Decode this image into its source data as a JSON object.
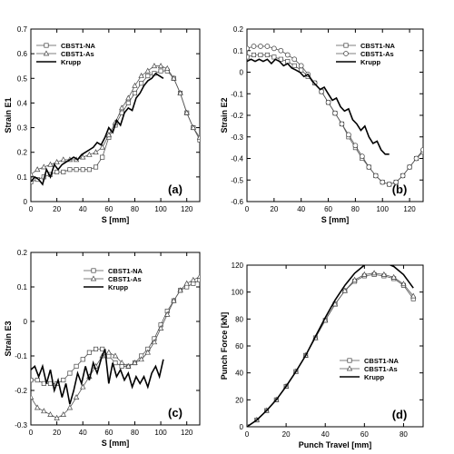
{
  "chart_data": [
    {
      "type": "line",
      "panel_label": "(a)",
      "xlabel": "S [mm]",
      "ylabel": "Strain E1",
      "xlim": [
        0,
        130
      ],
      "ylim": [
        0,
        0.7
      ],
      "xticks": [
        0,
        20,
        40,
        60,
        80,
        100,
        120
      ],
      "yticks": [
        0,
        0.1,
        0.2,
        0.3,
        0.4,
        0.5,
        0.6,
        0.7
      ],
      "legend_position": "top-left",
      "series": [
        {
          "name": "CBST1-NA",
          "marker": "square",
          "x": [
            0,
            5,
            10,
            15,
            20,
            25,
            30,
            35,
            40,
            45,
            50,
            55,
            60,
            65,
            70,
            75,
            80,
            85,
            90,
            95,
            100,
            105,
            110,
            115,
            120,
            125,
            130
          ],
          "y": [
            0.08,
            0.09,
            0.1,
            0.11,
            0.12,
            0.12,
            0.13,
            0.13,
            0.13,
            0.13,
            0.14,
            0.18,
            0.26,
            0.31,
            0.36,
            0.4,
            0.44,
            0.48,
            0.51,
            0.52,
            0.53,
            0.53,
            0.5,
            0.44,
            0.36,
            0.3,
            0.25
          ]
        },
        {
          "name": "CBST1-As",
          "marker": "triangle",
          "x": [
            0,
            5,
            10,
            15,
            20,
            25,
            30,
            35,
            40,
            45,
            50,
            55,
            60,
            65,
            70,
            75,
            80,
            85,
            90,
            95,
            100,
            105,
            110,
            115,
            120,
            125,
            130
          ],
          "y": [
            0.11,
            0.13,
            0.14,
            0.15,
            0.16,
            0.17,
            0.17,
            0.17,
            0.18,
            0.19,
            0.2,
            0.22,
            0.27,
            0.32,
            0.38,
            0.42,
            0.47,
            0.51,
            0.53,
            0.55,
            0.55,
            0.54,
            0.5,
            0.44,
            0.36,
            0.3,
            0.26
          ]
        },
        {
          "name": "Krupp",
          "marker": "none",
          "x": [
            0,
            3,
            6,
            9,
            12,
            15,
            18,
            21,
            24,
            27,
            30,
            33,
            36,
            39,
            42,
            45,
            48,
            51,
            54,
            57,
            60,
            63,
            66,
            69,
            72,
            75,
            78,
            81,
            84,
            87,
            90,
            93,
            96,
            99,
            102
          ],
          "y": [
            0.08,
            0.1,
            0.09,
            0.07,
            0.13,
            0.1,
            0.15,
            0.13,
            0.15,
            0.16,
            0.17,
            0.18,
            0.17,
            0.19,
            0.2,
            0.21,
            0.22,
            0.24,
            0.23,
            0.26,
            0.3,
            0.28,
            0.33,
            0.31,
            0.36,
            0.38,
            0.37,
            0.42,
            0.44,
            0.47,
            0.49,
            0.5,
            0.52,
            0.51,
            0.5
          ]
        }
      ]
    },
    {
      "type": "line",
      "panel_label": "(b)",
      "xlabel": "S [mm]",
      "ylabel": "Strain E2",
      "xlim": [
        0,
        130
      ],
      "ylim": [
        -0.6,
        0.2
      ],
      "xticks": [
        0,
        20,
        40,
        60,
        80,
        100,
        120
      ],
      "yticks": [
        -0.6,
        -0.5,
        -0.4,
        -0.3,
        -0.2,
        -0.1,
        0,
        0.1,
        0.2
      ],
      "legend_position": "top-right",
      "series": [
        {
          "name": "CBST1-NA",
          "marker": "square",
          "x": [
            0,
            5,
            10,
            15,
            20,
            25,
            30,
            35,
            40,
            45,
            50,
            55,
            60,
            65,
            70,
            75,
            80,
            85,
            90,
            95,
            100,
            105,
            110,
            115,
            120,
            125,
            130
          ],
          "y": [
            0.07,
            0.08,
            0.08,
            0.08,
            0.07,
            0.06,
            0.05,
            0.03,
            0.01,
            -0.02,
            -0.05,
            -0.09,
            -0.14,
            -0.19,
            -0.24,
            -0.3,
            -0.35,
            -0.4,
            -0.44,
            -0.48,
            -0.51,
            -0.52,
            -0.51,
            -0.48,
            -0.44,
            -0.4,
            -0.37
          ]
        },
        {
          "name": "CBST1-As",
          "marker": "circle",
          "x": [
            0,
            5,
            10,
            15,
            20,
            25,
            30,
            35,
            40,
            45,
            50,
            55,
            60,
            65,
            70,
            75,
            80,
            85,
            90,
            95,
            100,
            105,
            110,
            115,
            120,
            125,
            130
          ],
          "y": [
            0.11,
            0.12,
            0.12,
            0.12,
            0.11,
            0.1,
            0.08,
            0.06,
            0.03,
            -0.01,
            -0.05,
            -0.09,
            -0.14,
            -0.19,
            -0.24,
            -0.29,
            -0.34,
            -0.39,
            -0.44,
            -0.48,
            -0.51,
            -0.52,
            -0.51,
            -0.48,
            -0.44,
            -0.4,
            -0.36
          ]
        },
        {
          "name": "Krupp",
          "marker": "none",
          "x": [
            0,
            3,
            6,
            9,
            12,
            15,
            18,
            21,
            24,
            27,
            30,
            33,
            36,
            39,
            42,
            45,
            48,
            51,
            54,
            57,
            60,
            63,
            66,
            69,
            72,
            75,
            78,
            81,
            84,
            87,
            90,
            93,
            96,
            99,
            102,
            105
          ],
          "y": [
            0.05,
            0.06,
            0.05,
            0.06,
            0.05,
            0.06,
            0.04,
            0.06,
            0.05,
            0.03,
            0.04,
            0.02,
            0.01,
            0.0,
            -0.02,
            -0.01,
            -0.04,
            -0.06,
            -0.08,
            -0.07,
            -0.1,
            -0.13,
            -0.12,
            -0.16,
            -0.18,
            -0.17,
            -0.22,
            -0.24,
            -0.27,
            -0.25,
            -0.3,
            -0.33,
            -0.32,
            -0.36,
            -0.38,
            -0.38
          ]
        }
      ]
    },
    {
      "type": "line",
      "panel_label": "(c)",
      "xlabel": "S [mm]",
      "ylabel": "Strain E3",
      "xlim": [
        0,
        130
      ],
      "ylim": [
        -0.3,
        0.2
      ],
      "xticks": [
        0,
        20,
        40,
        60,
        80,
        100,
        120
      ],
      "yticks": [
        -0.3,
        -0.2,
        -0.1,
        0,
        0.1,
        0.2
      ],
      "legend_position": "top-right",
      "series": [
        {
          "name": "CBST1-NA",
          "marker": "square",
          "x": [
            0,
            5,
            10,
            15,
            20,
            25,
            30,
            35,
            40,
            45,
            50,
            55,
            60,
            65,
            70,
            75,
            80,
            85,
            90,
            95,
            100,
            105,
            110,
            115,
            120,
            125,
            130
          ],
          "y": [
            -0.17,
            -0.17,
            -0.18,
            -0.18,
            -0.18,
            -0.17,
            -0.15,
            -0.13,
            -0.11,
            -0.09,
            -0.08,
            -0.08,
            -0.1,
            -0.12,
            -0.13,
            -0.13,
            -0.12,
            -0.1,
            -0.08,
            -0.05,
            -0.01,
            0.03,
            0.06,
            0.09,
            0.1,
            0.11,
            0.12
          ]
        },
        {
          "name": "CBST1-As",
          "marker": "triangle",
          "x": [
            0,
            5,
            10,
            15,
            20,
            25,
            30,
            35,
            40,
            45,
            50,
            55,
            60,
            65,
            70,
            75,
            80,
            85,
            90,
            95,
            100,
            105,
            110,
            115,
            120,
            125,
            130
          ],
          "y": [
            -0.22,
            -0.25,
            -0.26,
            -0.27,
            -0.28,
            -0.27,
            -0.25,
            -0.22,
            -0.19,
            -0.16,
            -0.13,
            -0.1,
            -0.09,
            -0.1,
            -0.12,
            -0.13,
            -0.12,
            -0.11,
            -0.09,
            -0.06,
            -0.02,
            0.02,
            0.06,
            0.09,
            0.11,
            0.12,
            0.13
          ]
        },
        {
          "name": "Krupp",
          "marker": "none",
          "x": [
            0,
            3,
            6,
            9,
            12,
            15,
            18,
            21,
            24,
            27,
            30,
            33,
            36,
            39,
            42,
            45,
            48,
            51,
            54,
            57,
            60,
            63,
            66,
            69,
            72,
            75,
            78,
            81,
            84,
            87,
            90,
            93,
            96,
            99,
            102
          ],
          "y": [
            -0.14,
            -0.13,
            -0.16,
            -0.13,
            -0.18,
            -0.14,
            -0.2,
            -0.17,
            -0.22,
            -0.18,
            -0.24,
            -0.2,
            -0.15,
            -0.18,
            -0.13,
            -0.17,
            -0.12,
            -0.15,
            -0.11,
            -0.08,
            -0.18,
            -0.12,
            -0.16,
            -0.14,
            -0.17,
            -0.15,
            -0.19,
            -0.16,
            -0.18,
            -0.16,
            -0.19,
            -0.15,
            -0.13,
            -0.16,
            -0.11
          ]
        }
      ]
    },
    {
      "type": "line",
      "panel_label": "(d)",
      "xlabel": "Punch Travel [mm]",
      "ylabel": "Punch Force [kN]",
      "xlim": [
        0,
        90
      ],
      "ylim": [
        0,
        120
      ],
      "xticks": [
        0,
        20,
        40,
        60,
        80
      ],
      "yticks": [
        0,
        20,
        40,
        60,
        80,
        100,
        120
      ],
      "legend_position": "bottom-right",
      "series": [
        {
          "name": "CBST1-NA",
          "marker": "square",
          "x": [
            0,
            5,
            10,
            15,
            20,
            25,
            30,
            35,
            40,
            45,
            50,
            55,
            60,
            65,
            70,
            75,
            80,
            85
          ],
          "y": [
            0,
            5,
            12,
            20,
            30,
            41,
            53,
            66,
            79,
            91,
            101,
            108,
            112,
            113,
            112,
            110,
            105,
            95
          ]
        },
        {
          "name": "CBST1-As",
          "marker": "triangle",
          "x": [
            0,
            5,
            10,
            15,
            20,
            25,
            30,
            35,
            40,
            45,
            50,
            55,
            60,
            65,
            70,
            75,
            80,
            85
          ],
          "y": [
            0,
            5,
            12,
            20,
            30,
            41,
            53,
            66,
            79,
            91,
            101,
            109,
            113,
            114,
            113,
            111,
            106,
            97
          ]
        },
        {
          "name": "Krupp",
          "marker": "none",
          "x": [
            0,
            5,
            10,
            15,
            20,
            25,
            30,
            35,
            40,
            45,
            50,
            55,
            60,
            65,
            70,
            75,
            80,
            85
          ],
          "y": [
            0,
            5,
            12,
            20,
            30,
            41,
            53,
            67,
            81,
            94,
            105,
            114,
            120,
            123,
            122,
            119,
            113,
            103
          ]
        }
      ]
    }
  ]
}
